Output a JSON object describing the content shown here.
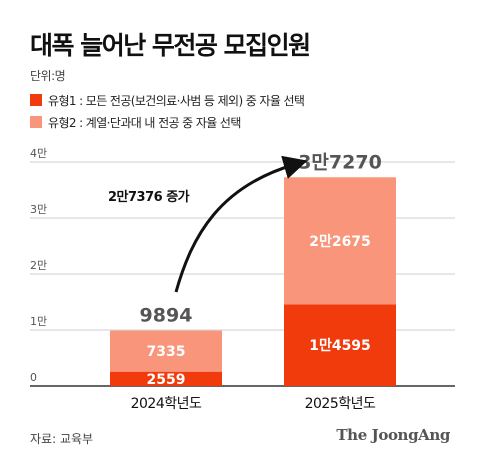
{
  "title": "대폭 늘어난 무전공 모집인원",
  "unit_label": "단위:명",
  "legend": [
    {
      "label": "유형1 : 모든 전공(보건의료·사범 등 제외) 중 자율 선택",
      "color": "#f23b0c"
    },
    {
      "label": "유형2 : 계열·단과대 내 전공 중 자율 선택",
      "color": "#f8957b"
    }
  ],
  "annotation": "2만7376 증가",
  "source": "자료: 교육부",
  "logo": "The JoongAng",
  "chart_data": {
    "type": "bar",
    "stacked": true,
    "categories": [
      "2024학년도",
      "2025학년도"
    ],
    "series": [
      {
        "name": "유형1",
        "values": [
          2559,
          14595
        ],
        "labels": [
          "2559",
          "1만4595"
        ],
        "color": "#f23b0c"
      },
      {
        "name": "유형2",
        "values": [
          7335,
          22675
        ],
        "labels": [
          "7335",
          "2만2675"
        ],
        "color": "#f8957b"
      }
    ],
    "totals": [
      9894,
      37270
    ],
    "total_labels": [
      "9894",
      "3만7270"
    ],
    "yticks": [
      0,
      10000,
      20000,
      30000,
      40000
    ],
    "ytick_labels": [
      "0",
      "1만",
      "2만",
      "3만",
      "4만"
    ],
    "ylim": [
      0,
      40000
    ],
    "grid": true
  }
}
